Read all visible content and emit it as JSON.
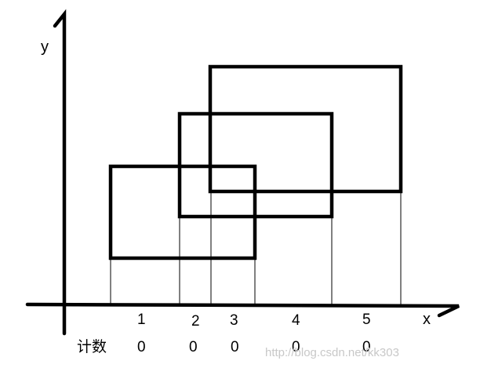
{
  "axes": {
    "x_label": "x",
    "y_label": "y"
  },
  "intervals": {
    "labels": [
      "1",
      "2",
      "3",
      "4",
      "5"
    ]
  },
  "counts": {
    "row_label": "计数",
    "values": [
      "0",
      "0",
      "0",
      "0",
      "0"
    ]
  },
  "watermark": "http://blog.csdn.net/kk303",
  "colors": {
    "stroke": "#000000",
    "watermark": "#c8c8c8"
  }
}
